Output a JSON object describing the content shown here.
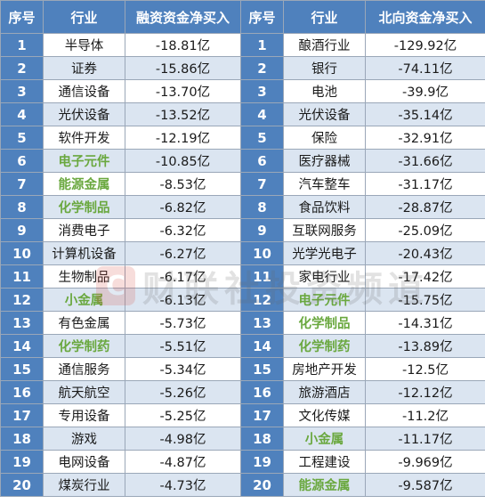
{
  "headers": [
    "序号",
    "行业",
    "融资资金净买入",
    "序号",
    "行业",
    "北向资金净买入"
  ],
  "highlight_color": "#6aa83f",
  "header_color": "#4f81bd",
  "rows": [
    {
      "idx_l": "1",
      "ind_l": "半导体",
      "val_l": "-18.81亿",
      "hl_l": false,
      "idx_r": "1",
      "ind_r": "酿酒行业",
      "val_r": "-129.92亿",
      "hl_r": false
    },
    {
      "idx_l": "2",
      "ind_l": "证券",
      "val_l": "-15.86亿",
      "hl_l": false,
      "idx_r": "2",
      "ind_r": "银行",
      "val_r": "-74.11亿",
      "hl_r": false
    },
    {
      "idx_l": "3",
      "ind_l": "通信设备",
      "val_l": "-13.70亿",
      "hl_l": false,
      "idx_r": "3",
      "ind_r": "电池",
      "val_r": "-39.9亿",
      "hl_r": false
    },
    {
      "idx_l": "4",
      "ind_l": "光伏设备",
      "val_l": "-13.52亿",
      "hl_l": false,
      "idx_r": "4",
      "ind_r": "光伏设备",
      "val_r": "-35.14亿",
      "hl_r": false
    },
    {
      "idx_l": "5",
      "ind_l": "软件开发",
      "val_l": "-12.19亿",
      "hl_l": false,
      "idx_r": "5",
      "ind_r": "保险",
      "val_r": "-32.91亿",
      "hl_r": false
    },
    {
      "idx_l": "6",
      "ind_l": "电子元件",
      "val_l": "-10.85亿",
      "hl_l": true,
      "idx_r": "6",
      "ind_r": "医疗器械",
      "val_r": "-31.66亿",
      "hl_r": false
    },
    {
      "idx_l": "7",
      "ind_l": "能源金属",
      "val_l": "-8.53亿",
      "hl_l": true,
      "idx_r": "7",
      "ind_r": "汽车整车",
      "val_r": "-31.17亿",
      "hl_r": false
    },
    {
      "idx_l": "8",
      "ind_l": "化学制品",
      "val_l": "-6.82亿",
      "hl_l": true,
      "idx_r": "8",
      "ind_r": "食品饮料",
      "val_r": "-28.87亿",
      "hl_r": false
    },
    {
      "idx_l": "9",
      "ind_l": "消费电子",
      "val_l": "-6.32亿",
      "hl_l": false,
      "idx_r": "9",
      "ind_r": "互联网服务",
      "val_r": "-25.09亿",
      "hl_r": false
    },
    {
      "idx_l": "10",
      "ind_l": "计算机设备",
      "val_l": "-6.27亿",
      "hl_l": false,
      "idx_r": "10",
      "ind_r": "光学光电子",
      "val_r": "-20.43亿",
      "hl_r": false
    },
    {
      "idx_l": "11",
      "ind_l": "生物制品",
      "val_l": "-6.17亿",
      "hl_l": false,
      "idx_r": "11",
      "ind_r": "家电行业",
      "val_r": "-17.42亿",
      "hl_r": false
    },
    {
      "idx_l": "12",
      "ind_l": "小金属",
      "val_l": "-6.13亿",
      "hl_l": true,
      "idx_r": "12",
      "ind_r": "电子元件",
      "val_r": "-15.75亿",
      "hl_r": true
    },
    {
      "idx_l": "13",
      "ind_l": "有色金属",
      "val_l": "-5.73亿",
      "hl_l": false,
      "idx_r": "13",
      "ind_r": "化学制品",
      "val_r": "-14.31亿",
      "hl_r": true
    },
    {
      "idx_l": "14",
      "ind_l": "化学制药",
      "val_l": "-5.51亿",
      "hl_l": true,
      "idx_r": "14",
      "ind_r": "化学制药",
      "val_r": "-13.89亿",
      "hl_r": true
    },
    {
      "idx_l": "15",
      "ind_l": "通信服务",
      "val_l": "-5.34亿",
      "hl_l": false,
      "idx_r": "15",
      "ind_r": "房地产开发",
      "val_r": "-12.5亿",
      "hl_r": false
    },
    {
      "idx_l": "16",
      "ind_l": "航天航空",
      "val_l": "-5.26亿",
      "hl_l": false,
      "idx_r": "16",
      "ind_r": "旅游酒店",
      "val_r": "-12.12亿",
      "hl_r": false
    },
    {
      "idx_l": "17",
      "ind_l": "专用设备",
      "val_l": "-5.25亿",
      "hl_l": false,
      "idx_r": "17",
      "ind_r": "文化传媒",
      "val_r": "-11.2亿",
      "hl_r": false
    },
    {
      "idx_l": "18",
      "ind_l": "游戏",
      "val_l": "-4.98亿",
      "hl_l": false,
      "idx_r": "18",
      "ind_r": "小金属",
      "val_r": "-11.17亿",
      "hl_r": true
    },
    {
      "idx_l": "19",
      "ind_l": "电网设备",
      "val_l": "-4.87亿",
      "hl_l": false,
      "idx_r": "19",
      "ind_r": "工程建设",
      "val_r": "-9.969亿",
      "hl_r": false
    },
    {
      "idx_l": "20",
      "ind_l": "煤炭行业",
      "val_l": "-4.73亿",
      "hl_l": false,
      "idx_r": "20",
      "ind_r": "能源金属",
      "val_r": "-9.587亿",
      "hl_r": true
    }
  ],
  "watermark": {
    "logo": "C",
    "text": "财联社投资频道",
    "icon": "cailianshe-logo-icon"
  }
}
